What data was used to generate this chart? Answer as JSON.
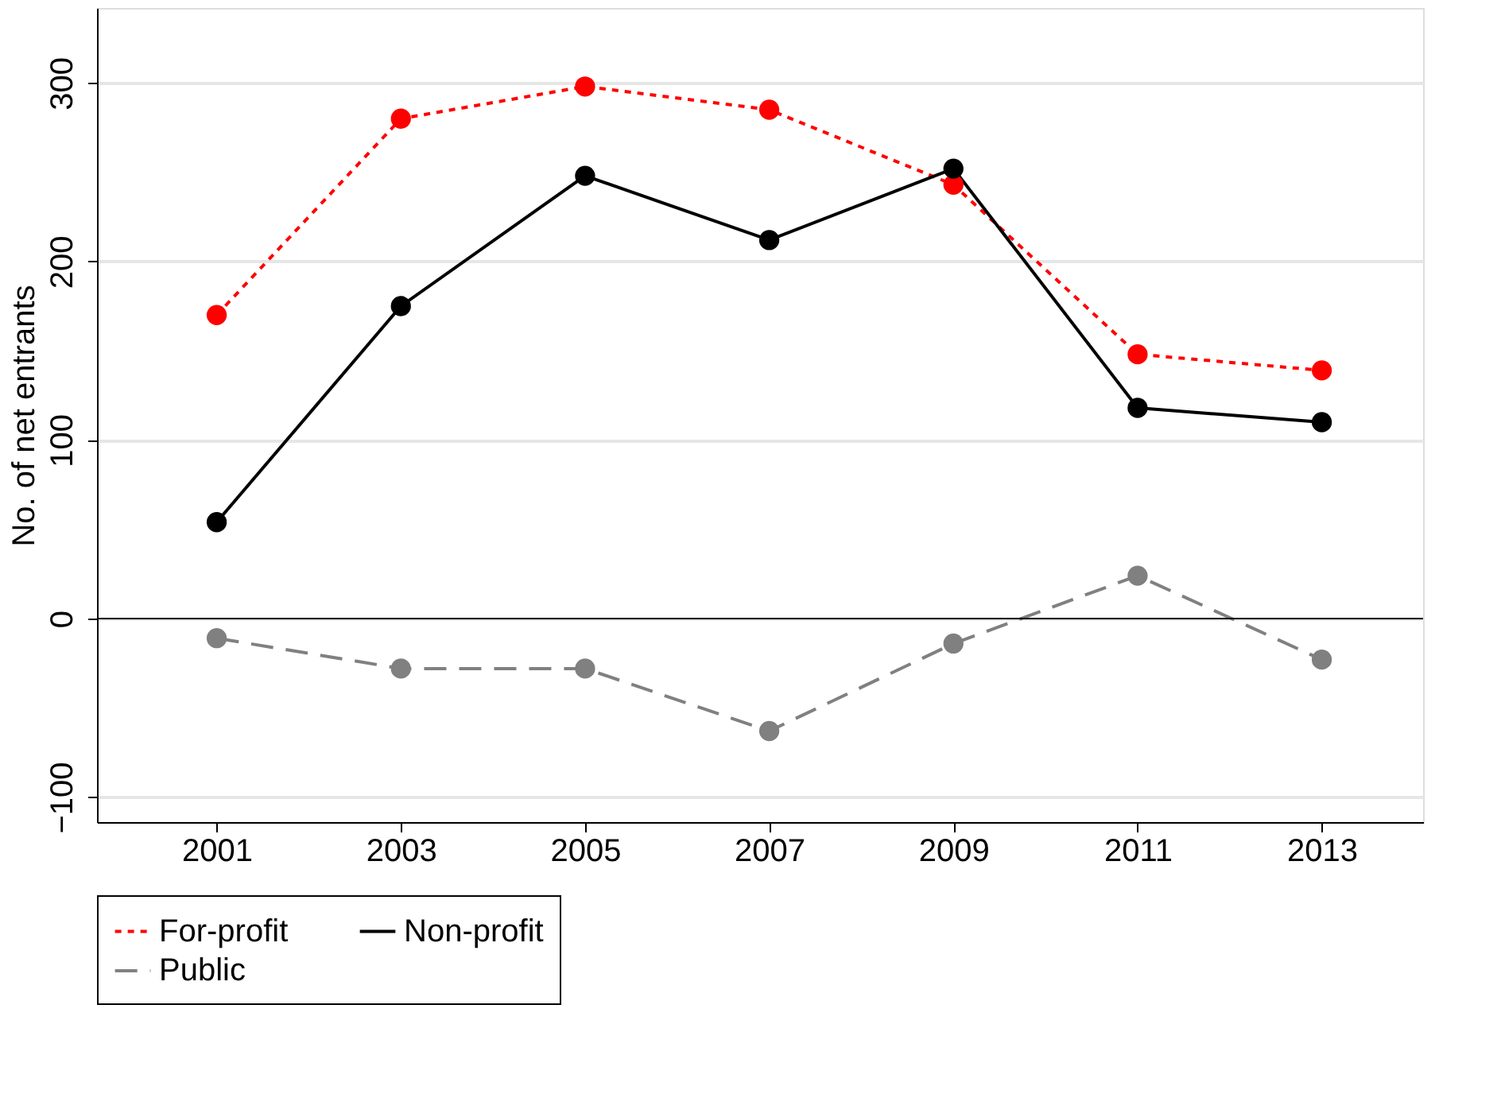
{
  "chart_data": {
    "type": "line",
    "ylabel": "No. of net entrants",
    "x": [
      2001,
      2003,
      2005,
      2007,
      2009,
      2011,
      2013
    ],
    "series": [
      {
        "name": "For-profit",
        "color": "#ff0000",
        "line_style": "dashed",
        "values": [
          170,
          280,
          298,
          285,
          243,
          148,
          139
        ]
      },
      {
        "name": "Non-profit",
        "color": "#000000",
        "line_style": "solid",
        "values": [
          54,
          175,
          248,
          212,
          252,
          118,
          110
        ]
      },
      {
        "name": "Public",
        "color": "#808080",
        "line_style": "longdash",
        "values": [
          -11,
          -28,
          -28,
          -63,
          -14,
          24,
          -23
        ]
      }
    ],
    "xlim": [
      1999.7,
      2014.1
    ],
    "xticks": [
      2001,
      2003,
      2005,
      2007,
      2009,
      2011,
      2013
    ],
    "ylim": [
      -114,
      342
    ],
    "yticks": [
      -100,
      0,
      100,
      200,
      300
    ],
    "ref_lines": [
      {
        "axis": "y",
        "value": 0,
        "color": "#000000"
      }
    ],
    "grid": "y",
    "legend": "bottom",
    "marker": "circle"
  }
}
